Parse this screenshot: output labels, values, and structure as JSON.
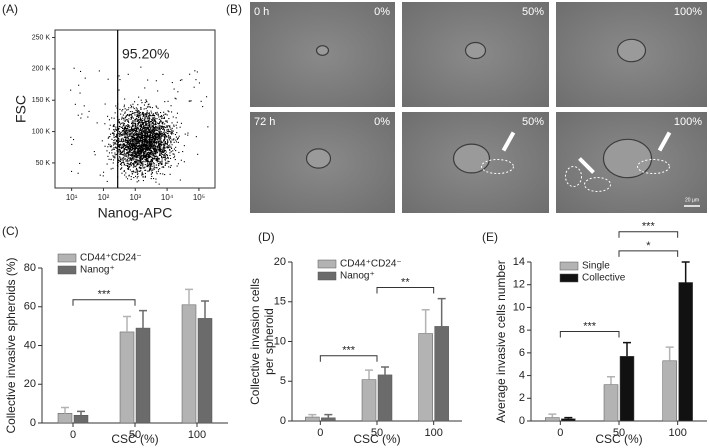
{
  "chart_data": [
    {
      "type": "scatter",
      "panel_label": "(A)",
      "x_label": "Nanog-APC",
      "y_label": "FSC",
      "annotation": "95.20%",
      "xlog": true,
      "xlim": [
        3,
        320000
      ],
      "xticks": [
        {
          "value": 10,
          "label": "10¹"
        },
        {
          "value": 100,
          "label": "10²"
        },
        {
          "value": 1000,
          "label": "10³"
        },
        {
          "value": 10000,
          "label": "10⁴"
        },
        {
          "value": 100000,
          "label": "10⁵"
        }
      ],
      "ylim": [
        10000,
        262000
      ],
      "yticks": [
        {
          "value": 50000,
          "label": "50 K"
        },
        {
          "value": 100000,
          "label": "100 K"
        },
        {
          "value": 150000,
          "label": "150 K"
        },
        {
          "value": 200000,
          "label": "200 K"
        },
        {
          "value": 250000,
          "label": "250 K"
        }
      ],
      "gate_x": 280,
      "color": "#000000"
    },
    {
      "type": "bar",
      "panel_label": "(C)",
      "x_label": "CSC (%)",
      "y_label": "Collective invasive spheroids (%)",
      "categories": [
        "0",
        "50",
        "100"
      ],
      "ylim": [
        0,
        80
      ],
      "yticks": [
        0,
        20,
        40,
        60,
        80
      ],
      "legend": "upper left",
      "series": [
        {
          "name": "CD44⁺CD24⁻",
          "color": "#b3b3b3",
          "values": [
            5,
            47,
            61
          ],
          "errors": [
            3,
            8,
            8
          ]
        },
        {
          "name": "Nanog⁺",
          "color": "#6b6b6b",
          "values": [
            4,
            49,
            54
          ],
          "errors": [
            2,
            9,
            9
          ]
        }
      ],
      "significance": [
        {
          "from": 0,
          "to": 1,
          "label": "***"
        }
      ]
    },
    {
      "type": "bar",
      "panel_label": "(D)",
      "x_label": "CSC (%)",
      "y_label": [
        "Collective invasion cells",
        "per spheroid"
      ],
      "categories": [
        "0",
        "50",
        "100"
      ],
      "ylim": [
        0,
        20
      ],
      "yticks": [
        0,
        5,
        10,
        15,
        20
      ],
      "legend": "upper left",
      "series": [
        {
          "name": "CD44⁺CD24⁻",
          "color": "#b3b3b3",
          "values": [
            0.5,
            5.2,
            11
          ],
          "errors": [
            0.3,
            1.2,
            3
          ]
        },
        {
          "name": "Nanog⁺",
          "color": "#6b6b6b",
          "values": [
            0.4,
            5.8,
            11.9
          ],
          "errors": [
            0.4,
            1.0,
            3.5
          ]
        }
      ],
      "significance": [
        {
          "from": 0,
          "to": 1,
          "label": "***"
        },
        {
          "from": 1,
          "to": 2,
          "label": "**"
        }
      ]
    },
    {
      "type": "bar",
      "panel_label": "(E)",
      "x_label": "CSC (%)",
      "y_label": "Average invasive cells number",
      "categories": [
        "0",
        "50",
        "100"
      ],
      "ylim": [
        0,
        14
      ],
      "yticks": [
        0,
        2,
        4,
        6,
        8,
        10,
        12,
        14
      ],
      "legend": "upper left",
      "series": [
        {
          "name": "Single",
          "color": "#b3b3b3",
          "values": [
            0.3,
            3.2,
            5.3
          ],
          "errors": [
            0.3,
            0.7,
            1.2
          ]
        },
        {
          "name": "Collective",
          "color": "#111111",
          "values": [
            0.2,
            5.7,
            12.2
          ],
          "errors": [
            0.1,
            1.2,
            1.8
          ]
        }
      ],
      "significance": [
        {
          "from": 0,
          "to": 1,
          "label": "***"
        },
        {
          "from": 1,
          "to": 2,
          "label": "*"
        },
        {
          "from": 1,
          "to": 2,
          "label": "***"
        }
      ]
    }
  ],
  "panels": {
    "B": {
      "label": "(B)",
      "rows": [
        "0 h",
        "72 h"
      ],
      "columns": [
        "0%",
        "50%",
        "100%"
      ],
      "scale_bar": "20 µm"
    }
  }
}
